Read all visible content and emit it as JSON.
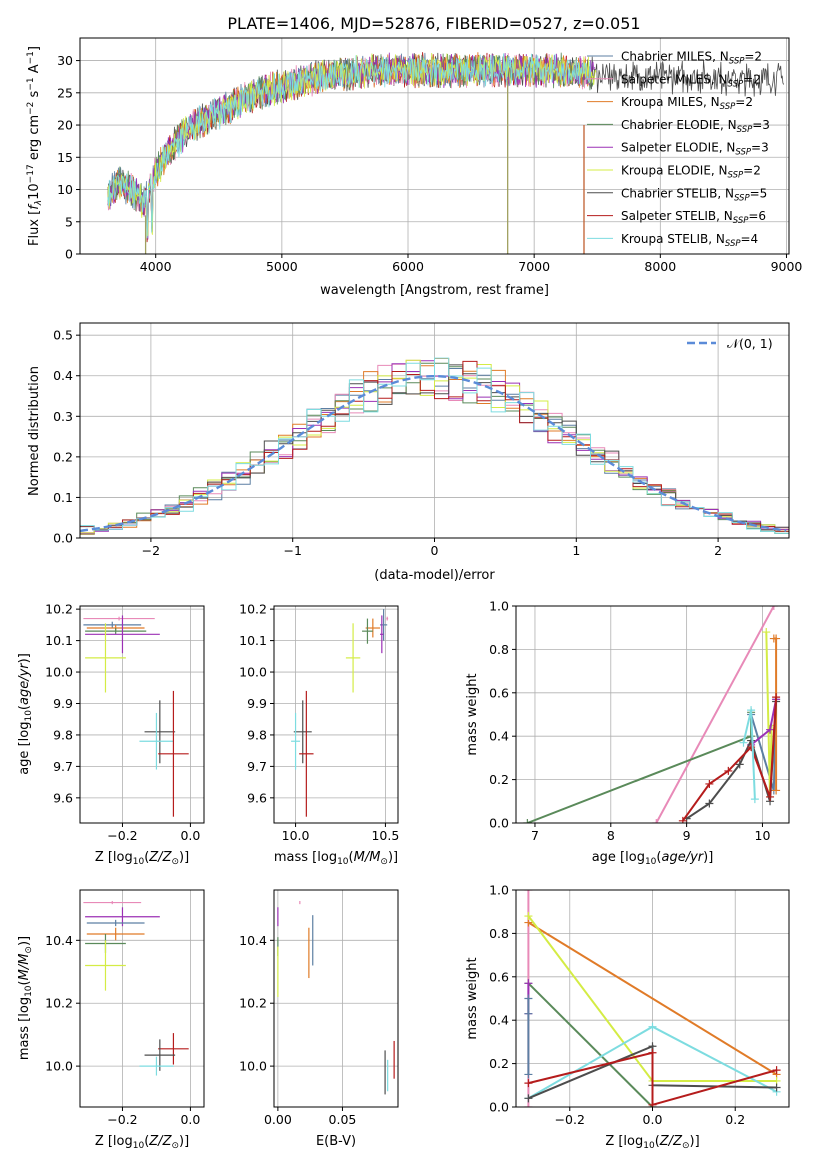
{
  "title": "PLATE=1406, MJD=52876, FIBERID=0527, z=0.051",
  "colors": {
    "Chabrier MILES": "#5c7fa3",
    "Salpeter MILES": "#e88ab8",
    "Kroupa MILES": "#e07b28",
    "Chabrier ELODIE": "#5a8a5a",
    "Salpeter ELODIE": "#9b30b5",
    "Kroupa ELODIE": "#d4ec45",
    "Chabrier STELIB": "#4d4d4d",
    "Salpeter STELIB": "#b51c1c",
    "Kroupa STELIB": "#7ddce0",
    "gaussian": "#5b8bd8",
    "grid": "#b0b0b0"
  },
  "chart_data": [
    {
      "type": "line",
      "xlabel": "wavelength [Angstrom, rest frame]",
      "ylabel": "Flux [f_λ10^-17 erg cm^-2 s^-1 A^-1]",
      "xlim": [
        3400,
        9020
      ],
      "ylim": [
        0,
        33.5
      ],
      "xticks": [
        4000,
        5000,
        6000,
        7000,
        8000,
        9000
      ],
      "yticks": [
        0,
        5,
        10,
        15,
        20,
        25,
        30
      ],
      "legend_position": "right",
      "series": [
        {
          "name": "Chabrier MILES, N_SSP=2",
          "label": "Chabrier MILES, N",
          "n_ssp": "=2"
        },
        {
          "name": "Salpeter MILES, N_SSP=2",
          "label": "Salpeter MILES, N",
          "n_ssp": "=2"
        },
        {
          "name": "Kroupa MILES, N_SSP=2",
          "label": "Kroupa MILES, N",
          "n_ssp": "=2"
        },
        {
          "name": "Chabrier ELODIE, N_SSP=3",
          "label": "Chabrier ELODIE, N",
          "n_ssp": "=3"
        },
        {
          "name": "Salpeter ELODIE, N_SSP=3",
          "label": "Salpeter ELODIE, N",
          "n_ssp": "=3"
        },
        {
          "name": "Kroupa ELODIE, N_SSP=2",
          "label": "Kroupa ELODIE, N",
          "n_ssp": "=2"
        },
        {
          "name": "Chabrier STELIB, N_SSP=5",
          "label": "Chabrier STELIB, N",
          "n_ssp": "=5"
        },
        {
          "name": "Salpeter STELIB, N_SSP=6",
          "label": "Salpeter STELIB, N",
          "n_ssp": "=6"
        },
        {
          "name": "Kroupa STELIB, N_SSP=4",
          "label": "Kroupa STELIB, N",
          "n_ssp": "=4"
        }
      ],
      "spectrum_profile": {
        "x": [
          3620,
          3700,
          3800,
          3900,
          4000,
          4100,
          4200,
          4300,
          4400,
          4500,
          4700,
          4900,
          5100,
          5300,
          5500,
          5800,
          6000,
          6200,
          6400,
          6600,
          6800,
          7000,
          7200,
          7400,
          7600,
          7800,
          8000,
          8200,
          8400,
          8600,
          8800,
          8980
        ],
        "y": [
          9,
          11,
          10,
          8,
          12.5,
          16,
          18,
          20,
          21,
          22,
          24,
          25.5,
          26.5,
          27.5,
          28,
          28.5,
          28.5,
          28.5,
          28.5,
          28.5,
          28.5,
          28.5,
          28.5,
          28,
          27.5,
          27.5,
          27.5,
          27.5,
          27.5,
          27,
          27,
          27.5
        ]
      }
    },
    {
      "type": "histogram",
      "xlabel": "(data-model)/error",
      "ylabel": "Normed distribution",
      "xlim": [
        -2.5,
        2.5
      ],
      "ylim": [
        0,
        0.53
      ],
      "xticks": [
        -2,
        -1,
        0,
        1,
        2
      ],
      "yticks": [
        0.0,
        0.1,
        0.2,
        0.3,
        0.4,
        0.5
      ],
      "legend": "𝒩(0, 1)",
      "legend_position": "top-right",
      "gaussian": {
        "mean": 0,
        "sigma": 1
      },
      "bin_centers": [
        -2.4,
        -2.2,
        -2.0,
        -1.8,
        -1.6,
        -1.4,
        -1.2,
        -1.0,
        -0.8,
        -0.6,
        -0.4,
        -0.2,
        0.0,
        0.2,
        0.4,
        0.6,
        0.8,
        1.0,
        1.2,
        1.4,
        1.6,
        1.8,
        2.0,
        2.2,
        2.4
      ],
      "values": [
        0.02,
        0.04,
        0.05,
        0.08,
        0.12,
        0.16,
        0.2,
        0.25,
        0.28,
        0.33,
        0.38,
        0.41,
        0.43,
        0.42,
        0.39,
        0.34,
        0.29,
        0.24,
        0.19,
        0.15,
        0.11,
        0.07,
        0.05,
        0.03,
        0.02
      ]
    },
    {
      "type": "scatter",
      "xlabel": "Z [log10(Z/Z⊙)]",
      "ylabel": "age  [log10(age/yr)]",
      "xlim": [
        -0.325,
        0.04
      ],
      "ylim": [
        9.52,
        10.21
      ],
      "xticks": [
        -0.2,
        0.0
      ],
      "xtick_labels": [
        "−0.2",
        "0.0"
      ],
      "yticks": [
        9.6,
        9.7,
        9.8,
        9.9,
        10.0,
        10.1,
        10.2
      ],
      "points": [
        {
          "model": "Salpeter MILES",
          "x": -0.21,
          "y": 10.17,
          "xerr": 0.105,
          "yerr": 0.0
        },
        {
          "model": "Chabrier MILES",
          "x": -0.23,
          "y": 10.15,
          "xerr": 0.085,
          "yerr": 0.01
        },
        {
          "model": "Kroupa MILES",
          "x": -0.22,
          "y": 10.14,
          "xerr": 0.085,
          "yerr": 0.01
        },
        {
          "model": "Chabrier ELODIE",
          "x": -0.22,
          "y": 10.13,
          "xerr": 0.09,
          "yerr": 0.01
        },
        {
          "model": "Salpeter ELODIE",
          "x": -0.2,
          "y": 10.12,
          "xerr": 0.11,
          "yerr": 0.06
        },
        {
          "model": "Kroupa ELODIE",
          "x": -0.25,
          "y": 10.045,
          "xerr": 0.06,
          "yerr": 0.11
        },
        {
          "model": "Chabrier STELIB",
          "x": -0.09,
          "y": 9.81,
          "xerr": 0.045,
          "yerr": 0.1
        },
        {
          "model": "Kroupa STELIB",
          "x": -0.1,
          "y": 9.78,
          "xerr": 0.05,
          "yerr": 0.09
        },
        {
          "model": "Salpeter STELIB",
          "x": -0.05,
          "y": 9.74,
          "xerr": 0.045,
          "yerr": 0.2
        }
      ]
    },
    {
      "type": "scatter",
      "xlabel": "mass [log10(M/M⊙)]",
      "ylabel": "",
      "xlim": [
        9.88,
        10.57
      ],
      "ylim": [
        9.52,
        10.21
      ],
      "xticks": [
        10.0,
        10.5
      ],
      "yticks": [
        9.6,
        9.7,
        9.8,
        9.9,
        10.0,
        10.1,
        10.2
      ],
      "points": [
        {
          "model": "Salpeter MILES",
          "x": 10.51,
          "y": 10.17,
          "xerr": 0.005,
          "yerr": 0.0
        },
        {
          "model": "Chabrier MILES",
          "x": 10.49,
          "y": 10.15,
          "xerr": 0.02,
          "yerr": 0.05
        },
        {
          "model": "Kroupa MILES",
          "x": 10.43,
          "y": 10.14,
          "xerr": 0.04,
          "yerr": 0.03
        },
        {
          "model": "Chabrier ELODIE",
          "x": 10.4,
          "y": 10.13,
          "xerr": 0.03,
          "yerr": 0.04
        },
        {
          "model": "Salpeter ELODIE",
          "x": 10.48,
          "y": 10.12,
          "xerr": 0.01,
          "yerr": 0.06
        },
        {
          "model": "Kroupa ELODIE",
          "x": 10.32,
          "y": 10.045,
          "xerr": 0.04,
          "yerr": 0.11
        },
        {
          "model": "Chabrier STELIB",
          "x": 10.04,
          "y": 9.81,
          "xerr": 0.05,
          "yerr": 0.1
        },
        {
          "model": "Kroupa STELIB",
          "x": 10.0,
          "y": 9.78,
          "xerr": 0.025,
          "yerr": 0.09
        },
        {
          "model": "Salpeter STELIB",
          "x": 10.06,
          "y": 9.74,
          "xerr": 0.04,
          "yerr": 0.2
        }
      ]
    },
    {
      "type": "line",
      "xlabel": "age  [log10(age/yr)]",
      "ylabel": "mass weight",
      "xlim": [
        6.75,
        10.35
      ],
      "ylim": [
        0,
        1.0
      ],
      "xticks": [
        7,
        8,
        9,
        10
      ],
      "yticks": [
        0.0,
        0.2,
        0.4,
        0.6,
        0.8,
        1.0
      ],
      "series": [
        {
          "model": "Salpeter MILES",
          "x": [
            8.6,
            10.15
          ],
          "y": [
            0.0,
            1.0
          ]
        },
        {
          "model": "Chabrier ELODIE",
          "x": [
            6.9,
            9.85,
            9.85
          ],
          "y": [
            0.0,
            0.4,
            0.51
          ]
        },
        {
          "model": "Chabrier MILES",
          "x": [
            9.85,
            10.15,
            10.18
          ],
          "y": [
            0.5,
            0.15,
            0.57
          ]
        },
        {
          "model": "Kroupa MILES",
          "x": [
            10.15,
            10.18,
            10.18
          ],
          "y": [
            0.85,
            0.85,
            0.15
          ]
        },
        {
          "model": "Kroupa ELODIE",
          "x": [
            10.05,
            10.1,
            10.12
          ],
          "y": [
            0.88,
            0.12,
            0.45
          ]
        },
        {
          "model": "Salpeter ELODIE",
          "x": [
            9.85,
            10.1,
            10.18
          ],
          "y": [
            0.36,
            0.43,
            0.57
          ]
        },
        {
          "model": "Chabrier STELIB",
          "x": [
            9.0,
            9.3,
            9.7,
            9.85,
            10.1,
            10.18
          ],
          "y": [
            0.02,
            0.09,
            0.27,
            0.38,
            0.1,
            0.56
          ]
        },
        {
          "model": "Salpeter STELIB",
          "x": [
            8.95,
            9.3,
            9.55,
            9.85,
            10.1,
            10.18
          ],
          "y": [
            0.01,
            0.18,
            0.24,
            0.35,
            0.12,
            0.58
          ]
        },
        {
          "model": "Kroupa STELIB",
          "x": [
            9.75,
            9.85,
            9.9
          ],
          "y": [
            0.37,
            0.52,
            0.11
          ]
        }
      ]
    },
    {
      "type": "scatter",
      "xlabel": "Z [log10(Z/Z⊙)]",
      "ylabel": "mass [log10(M/M⊙)]",
      "xlim": [
        -0.325,
        0.04
      ],
      "ylim": [
        9.87,
        10.56
      ],
      "xticks": [
        -0.2,
        0.0
      ],
      "xtick_labels": [
        "−0.2",
        "0.0"
      ],
      "yticks": [
        10.0,
        10.2,
        10.4
      ],
      "points": [
        {
          "model": "Salpeter MILES",
          "x": -0.23,
          "y": 10.52,
          "xerr": 0.085,
          "yerr": 0.005
        },
        {
          "model": "Salpeter ELODIE",
          "x": -0.2,
          "y": 10.475,
          "xerr": 0.11,
          "yerr": 0.03
        },
        {
          "model": "Chabrier MILES",
          "x": -0.22,
          "y": 10.455,
          "xerr": 0.085,
          "yerr": 0.01
        },
        {
          "model": "Kroupa MILES",
          "x": -0.22,
          "y": 10.42,
          "xerr": 0.085,
          "yerr": 0.02
        },
        {
          "model": "Chabrier ELODIE",
          "x": -0.25,
          "y": 10.39,
          "xerr": 0.06,
          "yerr": 0.03
        },
        {
          "model": "Kroupa ELODIE",
          "x": -0.25,
          "y": 10.32,
          "xerr": 0.06,
          "yerr": 0.08
        },
        {
          "model": "Salpeter STELIB",
          "x": -0.05,
          "y": 10.055,
          "xerr": 0.045,
          "yerr": 0.05
        },
        {
          "model": "Chabrier STELIB",
          "x": -0.09,
          "y": 10.035,
          "xerr": 0.045,
          "yerr": 0.05
        },
        {
          "model": "Kroupa STELIB",
          "x": -0.1,
          "y": 10.0,
          "xerr": 0.05,
          "yerr": 0.03
        }
      ]
    },
    {
      "type": "scatter",
      "xlabel": "E(B-V)",
      "ylabel": "",
      "xlim": [
        -0.003,
        0.093
      ],
      "ylim": [
        9.87,
        10.56
      ],
      "xticks": [
        0.0,
        0.05
      ],
      "xtick_labels": [
        "0.00",
        "0.05"
      ],
      "yticks": [
        10.0,
        10.2,
        10.4
      ],
      "points": [
        {
          "model": "Salpeter MILES",
          "x": 0.017,
          "y": 10.52,
          "xerr": 0,
          "yerr": 0.005
        },
        {
          "model": "Salpeter ELODIE",
          "x": 0.0,
          "y": 10.475,
          "xerr": 0,
          "yerr": 0.03
        },
        {
          "model": "Chabrier MILES",
          "x": 0.027,
          "y": 10.4,
          "xerr": 0,
          "yerr": 0.08
        },
        {
          "model": "Kroupa MILES",
          "x": 0.024,
          "y": 10.36,
          "xerr": 0,
          "yerr": 0.08
        },
        {
          "model": "Chabrier ELODIE",
          "x": 0.0,
          "y": 10.38,
          "xerr": 0,
          "yerr": 0.03
        },
        {
          "model": "Kroupa ELODIE",
          "x": 0.0,
          "y": 10.3,
          "xerr": 0,
          "yerr": 0.08
        },
        {
          "model": "Chabrier STELIB",
          "x": 0.083,
          "y": 9.98,
          "xerr": 0,
          "yerr": 0.07
        },
        {
          "model": "Kroupa STELIB",
          "x": 0.085,
          "y": 9.97,
          "xerr": 0,
          "yerr": 0.05
        },
        {
          "model": "Salpeter STELIB",
          "x": 0.09,
          "y": 10.02,
          "xerr": 0,
          "yerr": 0.06
        }
      ]
    },
    {
      "type": "line",
      "xlabel": "Z [log10(Z/Z⊙)]",
      "ylabel": "mass weight",
      "xlim": [
        -0.33,
        0.33
      ],
      "ylim": [
        0,
        1.0
      ],
      "xticks": [
        -0.2,
        0.0,
        0.2
      ],
      "xtick_labels": [
        "−0.2",
        "0.0",
        "0.2"
      ],
      "yticks": [
        0.0,
        0.2,
        0.4,
        0.6,
        0.8,
        1.0
      ],
      "series": [
        {
          "model": "Salpeter MILES",
          "x": [
            -0.3,
            -0.3
          ],
          "y": [
            1.0,
            0.0
          ]
        },
        {
          "model": "Kroupa MILES",
          "x": [
            -0.3,
            0.3
          ],
          "y": [
            0.85,
            0.15
          ]
        },
        {
          "model": "Kroupa ELODIE",
          "x": [
            -0.3,
            0.0,
            0.3
          ],
          "y": [
            0.88,
            0.12,
            0.12
          ]
        },
        {
          "model": "Chabrier ELODIE",
          "x": [
            -0.3,
            0.0
          ],
          "y": [
            0.57,
            0.0
          ]
        },
        {
          "model": "Salpeter ELODIE",
          "x": [
            -0.3,
            -0.3
          ],
          "y": [
            0.57,
            0.43
          ]
        },
        {
          "model": "Chabrier MILES",
          "x": [
            -0.3,
            -0.3,
            -0.3
          ],
          "y": [
            0.5,
            0.43,
            0.15
          ]
        },
        {
          "model": "Kroupa STELIB",
          "x": [
            -0.3,
            0.0,
            0.3
          ],
          "y": [
            0.04,
            0.37,
            0.07
          ]
        },
        {
          "model": "Chabrier STELIB",
          "x": [
            -0.3,
            0.0,
            0.0,
            0.3
          ],
          "y": [
            0.04,
            0.28,
            0.1,
            0.09
          ]
        },
        {
          "model": "Salpeter STELIB",
          "x": [
            -0.3,
            0.0,
            0.0,
            0.3
          ],
          "y": [
            0.11,
            0.25,
            0.01,
            0.17
          ]
        }
      ]
    }
  ]
}
